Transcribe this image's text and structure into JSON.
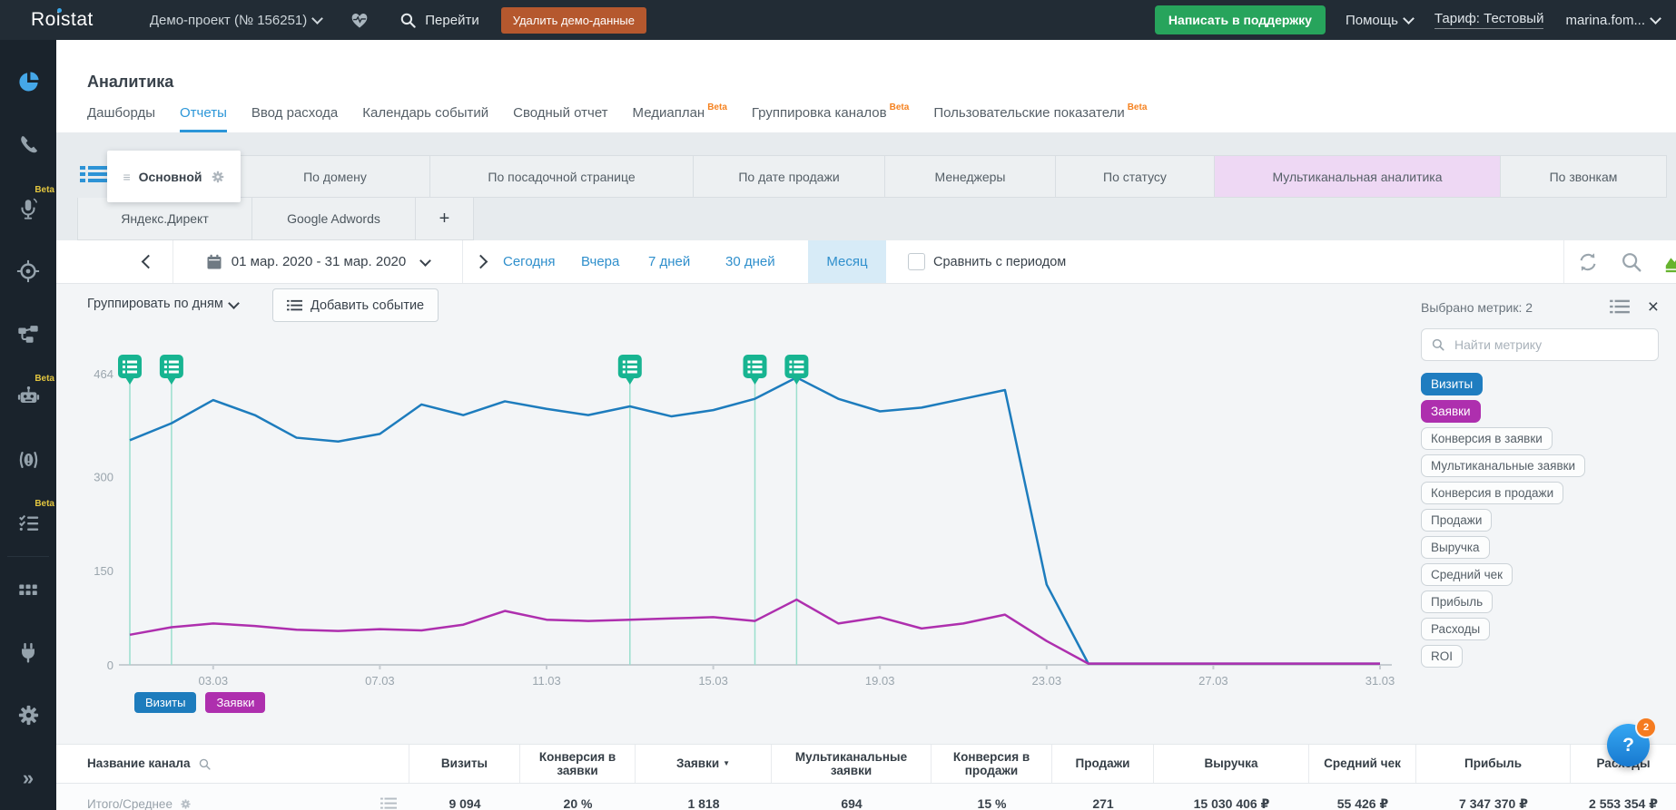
{
  "topbar": {
    "logo": "Roistat",
    "project_label": "Демо-проект  (№ 156251)",
    "search_label": "Перейти",
    "delete_button": "Удалить демо-данные",
    "support_button": "Написать в поддержку",
    "help_label": "Помощь",
    "tariff_label": "Тариф: Тестовый",
    "user_label": "marina.fom..."
  },
  "sidebar": {
    "beta_label": "Beta",
    "items": [
      {
        "name": "analytics",
        "beta": false
      },
      {
        "name": "calls",
        "beta": false
      },
      {
        "name": "speech-analytics",
        "beta": true
      },
      {
        "name": "tracking",
        "beta": false
      },
      {
        "name": "scenarios",
        "beta": false
      },
      {
        "name": "robot",
        "beta": true
      },
      {
        "name": "alerts",
        "beta": false
      },
      {
        "name": "tasks",
        "beta": true
      },
      {
        "name": "apps",
        "beta": false
      },
      {
        "name": "integrations",
        "beta": false
      },
      {
        "name": "settings",
        "beta": false
      },
      {
        "name": "collapse",
        "beta": false
      }
    ]
  },
  "page_title": "Аналитика",
  "beta_label": "Beta",
  "nav_tabs": [
    {
      "label": "Дашборды"
    },
    {
      "label": "Отчеты",
      "active": true
    },
    {
      "label": "Ввод расхода"
    },
    {
      "label": "Календарь событий"
    },
    {
      "label": "Сводный отчет"
    },
    {
      "label": "Медиаплан",
      "beta": true
    },
    {
      "label": "Группировка каналов",
      "beta": true
    },
    {
      "label": "Пользовательские показатели",
      "beta": true
    }
  ],
  "report_tabs": [
    {
      "label": "Основной",
      "state": "active"
    },
    {
      "label": "По домену"
    },
    {
      "label": "По посадочной странице"
    },
    {
      "label": "По дате продажи"
    },
    {
      "label": "Менеджеры"
    },
    {
      "label": "По статусу"
    },
    {
      "label": "Мультиканальная аналитика",
      "state": "highlight"
    },
    {
      "label": "По звонкам"
    }
  ],
  "channel_tabs": [
    {
      "label": "Яндекс.Директ"
    },
    {
      "label": "Google Adwords"
    },
    {
      "label": "+"
    }
  ],
  "toolbar": {
    "date_range": "01 мар. 2020 - 31 мар. 2020",
    "quick_links": [
      {
        "label": "Сегодня"
      },
      {
        "label": "Вчера"
      },
      {
        "label": "7 дней"
      },
      {
        "label": "30 дней"
      },
      {
        "label": "Месяц",
        "active": true
      }
    ],
    "compare_label": "Сравнить с периодом"
  },
  "chart_controls": {
    "group_by": "Группировать по дням",
    "add_event": "Добавить событие"
  },
  "chart_data": {
    "type": "line",
    "x": [
      "01.03",
      "02.03",
      "03.03",
      "04.03",
      "05.03",
      "06.03",
      "07.03",
      "08.03",
      "09.03",
      "10.03",
      "11.03",
      "12.03",
      "13.03",
      "14.03",
      "15.03",
      "16.03",
      "17.03",
      "18.03",
      "19.03",
      "20.03",
      "21.03",
      "22.03",
      "23.03",
      "24.03",
      "25.03",
      "26.03",
      "27.03",
      "28.03",
      "29.03",
      "30.03",
      "31.03"
    ],
    "xticks": [
      "03.03",
      "07.03",
      "11.03",
      "15.03",
      "19.03",
      "23.03",
      "27.03",
      "31.03"
    ],
    "yticks": [
      0,
      150,
      300,
      464
    ],
    "ylim": [
      0,
      464
    ],
    "grid": false,
    "legend_position": "bottom",
    "series": [
      {
        "name": "Визиты",
        "color": "#1d7cbd",
        "values": [
          358,
          385,
          422,
          398,
          362,
          356,
          368,
          415,
          398,
          420,
          408,
          398,
          412,
          396,
          406,
          424,
          458,
          424,
          404,
          410,
          424,
          438,
          128,
          2,
          2,
          2,
          2,
          2,
          2,
          2,
          2
        ]
      },
      {
        "name": "Заявки",
        "color": "#ae2fae",
        "values": [
          48,
          60,
          66,
          62,
          56,
          54,
          57,
          55,
          64,
          86,
          72,
          70,
          72,
          74,
          76,
          70,
          104,
          66,
          76,
          58,
          66,
          80,
          38,
          2,
          2,
          2,
          2,
          2,
          2,
          2,
          2
        ]
      }
    ],
    "events": [
      {
        "date": "01.03"
      },
      {
        "date": "02.03"
      },
      {
        "date": "13.03"
      },
      {
        "date": "16.03"
      },
      {
        "date": "17.03"
      }
    ],
    "event_color": "#17b491"
  },
  "legend": [
    {
      "label": "Визиты",
      "color": "#1d7cbd"
    },
    {
      "label": "Заявки",
      "color": "#ae2fae"
    }
  ],
  "metrics_panel": {
    "title": "Выбрано метрик: 2",
    "search_placeholder": "Найти метрику",
    "metrics": [
      {
        "label": "Визиты",
        "selected": "blue"
      },
      {
        "label": "Заявки",
        "selected": "purple"
      },
      {
        "label": "Конверсия в заявки"
      },
      {
        "label": "Мультиканальные заявки"
      },
      {
        "label": "Конверсия в продажи"
      },
      {
        "label": "Продажи"
      },
      {
        "label": "Выручка"
      },
      {
        "label": "Средний чек"
      },
      {
        "label": "Прибыль"
      },
      {
        "label": "Расходы"
      },
      {
        "label": "ROI"
      }
    ]
  },
  "table": {
    "columns": [
      "Название канала",
      "Визиты",
      "Конверсия в заявки",
      "Заявки",
      "Мультиканальные заявки",
      "Конверсия в продажи",
      "Продажи",
      "Выручка",
      "Средний чек",
      "Прибыль",
      "Расходы"
    ],
    "sorted_column": "Заявки",
    "totals_row": {
      "label": "Итого/Среднее",
      "values": [
        "9 094",
        "20 %",
        "1 818",
        "694",
        "15 %",
        "271",
        "15 030 406 ₽",
        "55 426 ₽",
        "7 347 370 ₽",
        "2 553 354 ₽"
      ]
    }
  },
  "help_button": {
    "label": "?",
    "badge": "2"
  }
}
